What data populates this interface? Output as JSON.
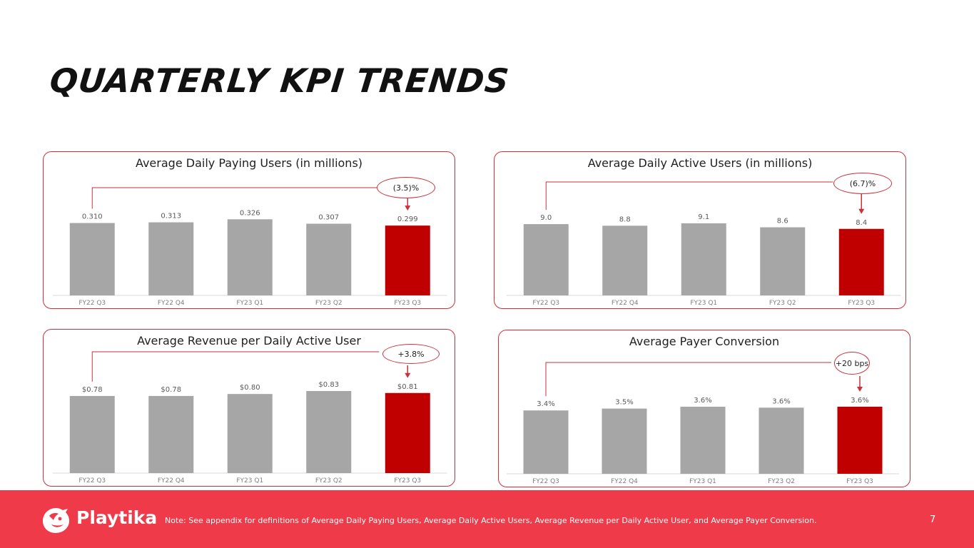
{
  "page": {
    "title": "QUARTERLY KPI TRENDS",
    "footer": {
      "logo_text": "Playtika",
      "note": "Note:  See appendix for definitions of Average Daily Paying Users, Average Daily Active Users, Average Revenue per Daily Active User, and Average Payer Conversion.",
      "page_number": "7"
    },
    "colors": {
      "bar_default": "#a6a6a6",
      "bar_highlight": "#c00000",
      "accent": "#c8323c",
      "footer_bg": "#ef3a4a"
    }
  },
  "chart_data": [
    {
      "type": "bar",
      "title": "Average Daily Paying Users (in millions)",
      "categories": [
        "FY22 Q3",
        "FY22 Q4",
        "FY23 Q1",
        "FY23 Q2",
        "FY23 Q3"
      ],
      "values": [
        0.31,
        0.313,
        0.326,
        0.307,
        0.299
      ],
      "labels": [
        "0.310",
        "0.313",
        "0.326",
        "0.307",
        "0.299"
      ],
      "highlight_index": 4,
      "change_label": "(3.5)%",
      "ylim": [
        0,
        0.33
      ]
    },
    {
      "type": "bar",
      "title": "Average Daily Active Users (in millions)",
      "categories": [
        "FY22 Q3",
        "FY22 Q4",
        "FY23 Q1",
        "FY23 Q2",
        "FY23 Q3"
      ],
      "values": [
        9.0,
        8.8,
        9.1,
        8.6,
        8.4
      ],
      "labels": [
        "9.0",
        "8.8",
        "9.1",
        "8.6",
        "8.4"
      ],
      "highlight_index": 4,
      "change_label": "(6.7)%",
      "ylim": [
        0,
        9.1
      ]
    },
    {
      "type": "bar",
      "title": "Average Revenue per Daily Active User",
      "categories": [
        "FY22 Q3",
        "FY22 Q4",
        "FY23 Q1",
        "FY23 Q2",
        "FY23 Q3"
      ],
      "values": [
        0.78,
        0.78,
        0.8,
        0.83,
        0.81
      ],
      "labels": [
        "$0.78",
        "$0.78",
        "$0.80",
        "$0.83",
        "$0.81"
      ],
      "highlight_index": 4,
      "change_label": "+3.8%",
      "ylim": [
        0,
        0.83
      ]
    },
    {
      "type": "bar",
      "title": "Average Payer Conversion",
      "categories": [
        "FY22 Q3",
        "FY22 Q4",
        "FY23 Q1",
        "FY23 Q2",
        "FY23 Q3"
      ],
      "values": [
        3.4,
        3.5,
        3.6,
        3.55,
        3.6
      ],
      "labels": [
        "3.4%",
        "3.5%",
        "3.6%",
        "3.6%",
        "3.6%"
      ],
      "highlight_index": 4,
      "change_label": "+20 bps",
      "ylim": [
        0,
        3.6
      ]
    }
  ]
}
